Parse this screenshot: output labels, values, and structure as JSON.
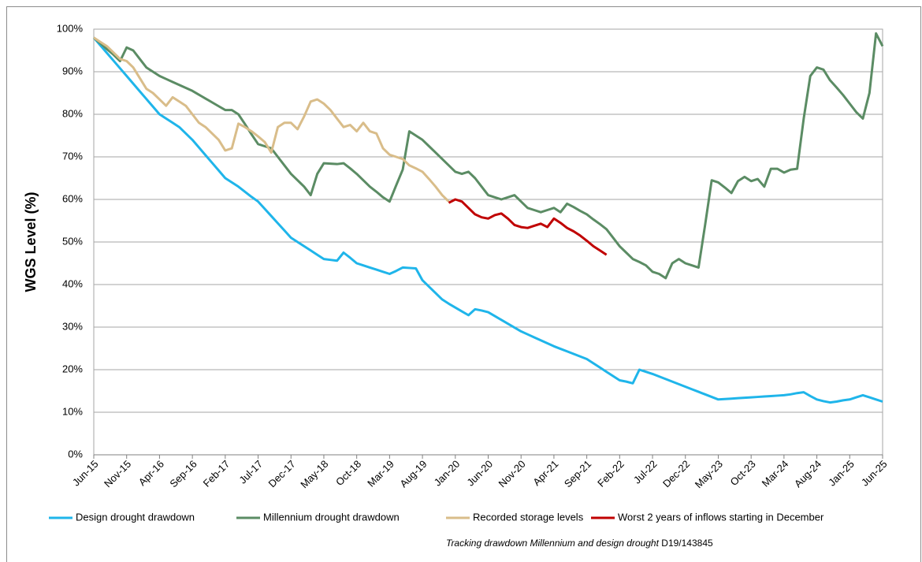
{
  "chart_data": {
    "type": "line",
    "y_label": "WGS Level (%)",
    "note": {
      "text": "Tracking drawdown Millennium and design drought",
      "ref": "D19/143845"
    },
    "grid": true,
    "legend": "bottom",
    "ylim": [
      0,
      100
    ],
    "yticks": [
      {
        "value": 0,
        "label": "0%"
      },
      {
        "value": 10,
        "label": "10%"
      },
      {
        "value": 20,
        "label": "20%"
      },
      {
        "value": 30,
        "label": "30%"
      },
      {
        "value": 40,
        "label": "40%"
      },
      {
        "value": 50,
        "label": "50%"
      },
      {
        "value": 60,
        "label": "60%"
      },
      {
        "value": 70,
        "label": "70%"
      },
      {
        "value": 80,
        "label": "80%"
      },
      {
        "value": 90,
        "label": "90%"
      },
      {
        "value": 100,
        "label": "100%"
      }
    ],
    "categories": [
      "Jun-15",
      null,
      null,
      null,
      null,
      "Nov-15",
      null,
      null,
      null,
      null,
      "Apr-16",
      null,
      null,
      null,
      null,
      "Sep-16",
      null,
      null,
      null,
      null,
      "Feb-17",
      null,
      null,
      null,
      null,
      "Jul-17",
      null,
      null,
      null,
      null,
      "Dec-17",
      null,
      null,
      null,
      null,
      "May-18",
      null,
      null,
      null,
      null,
      "Oct-18",
      null,
      null,
      null,
      null,
      "Mar-19",
      null,
      null,
      null,
      null,
      "Aug-19",
      null,
      null,
      null,
      null,
      "Jan-20",
      null,
      null,
      null,
      null,
      "Jun-20",
      null,
      null,
      null,
      null,
      "Nov-20",
      null,
      null,
      null,
      null,
      "Apr-21",
      null,
      null,
      null,
      null,
      "Sep-21",
      null,
      null,
      null,
      null,
      "Feb-22",
      null,
      null,
      null,
      null,
      "Jul-22",
      null,
      null,
      null,
      null,
      "Dec-22",
      null,
      null,
      null,
      null,
      "May-23",
      null,
      null,
      null,
      null,
      "Oct-23",
      null,
      null,
      null,
      null,
      "Mar-24",
      null,
      null,
      null,
      null,
      "Aug-24",
      null,
      null,
      null,
      null,
      "Jan-25",
      null,
      null,
      null,
      null,
      "Jun-25"
    ],
    "series": [
      {
        "name": "Design drought drawdown",
        "color": "#1fb5ea",
        "values": [
          98,
          96.2,
          94.4,
          92.6,
          90.8,
          89,
          87.2,
          85.4,
          83.6,
          81.8,
          80,
          79,
          78,
          77,
          75.5,
          74,
          72.2,
          70.4,
          68.6,
          66.8,
          65,
          64,
          63,
          61.8,
          60.6,
          59.5,
          57.8,
          56.1,
          54.4,
          52.7,
          51,
          50,
          49,
          48,
          47,
          46,
          45.8,
          45.6,
          47.5,
          46.3,
          45,
          44.5,
          44,
          43.5,
          43,
          42.5,
          43.2,
          44,
          43.9,
          43.8,
          41,
          39.5,
          38,
          36.5,
          35.5,
          34.6,
          33.7,
          32.8,
          34.2,
          33.9,
          33.5,
          32.6,
          31.7,
          30.8,
          29.9,
          29,
          28.3,
          27.6,
          26.9,
          26.2,
          25.5,
          24.9,
          24.3,
          23.7,
          23.1,
          22.5,
          21.5,
          20.5,
          19.5,
          18.5,
          17.5,
          17.2,
          16.8,
          20,
          19.5,
          19,
          18.4,
          17.8,
          17.2,
          16.6,
          16,
          15.4,
          14.8,
          14.2,
          13.6,
          13,
          13.1,
          13.2,
          13.3,
          13.4,
          13.5,
          13.6,
          13.7,
          13.8,
          13.9,
          14,
          14.2,
          14.5,
          14.7,
          13.8,
          13,
          12.6,
          12.3,
          12.5,
          12.8,
          13,
          13.5,
          14,
          13.5,
          13,
          12.5
        ]
      },
      {
        "name": "Millennium drought drawdown",
        "color": "#5b8c64",
        "values": [
          98,
          96.7,
          95.3,
          94,
          92.5,
          95.7,
          95,
          93,
          91,
          90,
          89,
          88.3,
          87.6,
          86.9,
          86.2,
          85.5,
          84.6,
          83.7,
          82.8,
          81.9,
          81,
          81,
          80,
          77.7,
          75.3,
          73,
          72.5,
          72,
          70,
          68,
          66,
          64.5,
          63,
          61,
          66,
          68.5,
          68.4,
          68.3,
          68.5,
          67.3,
          66,
          64.5,
          63,
          61.8,
          60.5,
          59.5,
          63.3,
          67,
          76,
          75,
          74,
          72.5,
          71,
          69.5,
          68,
          66.5,
          66,
          66.5,
          65,
          63,
          61,
          60.5,
          60,
          60.5,
          61,
          59.5,
          58,
          57.5,
          57,
          57.5,
          58,
          57,
          59,
          58.2,
          57.3,
          56.5,
          55.3,
          54.2,
          53,
          51,
          49,
          47.5,
          46,
          45.3,
          44.5,
          43,
          42.5,
          41.5,
          45,
          46,
          45,
          44.5,
          44,
          54,
          64.5,
          64,
          62.8,
          61.5,
          64.3,
          65.3,
          64.3,
          64.8,
          63,
          67.2,
          67.2,
          66.3,
          67,
          67.2,
          79,
          89,
          91,
          90.5,
          88,
          86.3,
          84.5,
          82.5,
          80.5,
          79,
          85,
          99,
          96
        ]
      },
      {
        "name": "Recorded storage levels",
        "color": "#d9bd8a",
        "values": [
          98,
          97,
          96,
          94.5,
          93,
          92.5,
          91,
          88.5,
          86,
          85,
          83.5,
          82,
          84,
          83,
          82,
          80,
          78,
          77,
          75.5,
          74,
          71.5,
          72,
          77.8,
          77,
          76,
          74.8,
          73.5,
          71,
          77,
          78,
          78,
          76.5,
          79.5,
          83,
          83.5,
          82.5,
          81,
          79,
          77,
          77.5,
          76,
          78,
          76,
          75.5,
          72,
          70.5,
          70,
          69.5,
          68,
          67.3,
          66.5,
          64.8,
          63,
          61,
          59.5,
          null,
          null,
          null,
          null,
          null,
          null,
          null,
          null,
          null,
          null,
          null,
          null,
          null,
          null,
          null,
          null,
          null,
          null,
          null,
          null,
          null,
          null,
          null,
          null,
          null,
          null,
          null,
          null,
          null,
          null,
          null,
          null,
          null,
          null,
          null,
          null,
          null,
          null,
          null,
          null,
          null,
          null,
          null,
          null,
          null,
          null,
          null,
          null,
          null,
          null,
          null,
          null,
          null,
          null,
          null,
          null,
          null,
          null,
          null,
          null,
          null,
          null,
          null,
          null,
          null,
          null
        ]
      },
      {
        "name": "Worst 2 years of inflows starting in December",
        "color": "#c00000",
        "values": [
          null,
          null,
          null,
          null,
          null,
          null,
          null,
          null,
          null,
          null,
          null,
          null,
          null,
          null,
          null,
          null,
          null,
          null,
          null,
          null,
          null,
          null,
          null,
          null,
          null,
          null,
          null,
          null,
          null,
          null,
          null,
          null,
          null,
          null,
          null,
          null,
          null,
          null,
          null,
          null,
          null,
          null,
          null,
          null,
          null,
          null,
          null,
          null,
          null,
          null,
          null,
          null,
          null,
          null,
          59.2,
          60,
          59.5,
          58,
          56.5,
          55.8,
          55.5,
          56.3,
          56.7,
          55.5,
          54,
          53.5,
          53.3,
          53.8,
          54.3,
          53.5,
          55.5,
          54.5,
          53.3,
          52.5,
          51.5,
          50.3,
          49,
          48,
          47,
          null,
          null,
          null,
          null,
          null,
          null,
          null,
          null,
          null,
          null,
          null,
          null,
          null,
          null,
          null,
          null,
          null,
          null,
          null,
          null,
          null,
          null,
          null,
          null,
          null,
          null,
          null,
          null,
          null,
          null,
          null,
          null,
          null,
          null,
          null,
          null,
          null,
          null,
          null,
          null,
          null,
          null
        ]
      }
    ]
  }
}
